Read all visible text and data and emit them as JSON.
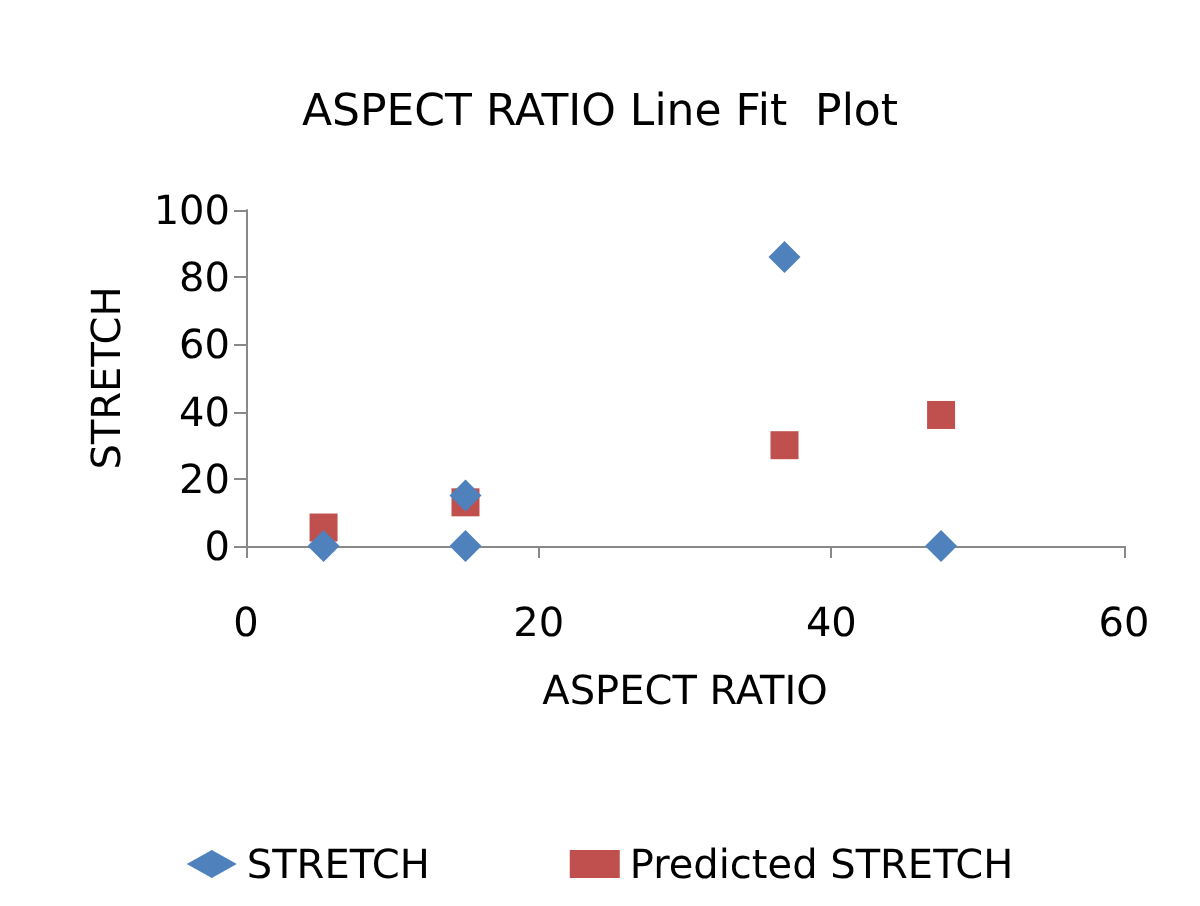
{
  "chart_data": {
    "type": "scatter",
    "title": "ASPECT RATIO Line Fit  Plot",
    "xlabel": "ASPECT RATIO",
    "ylabel": "STRETCH",
    "series": [
      {
        "name": "STRETCH",
        "color": "#4f81bd",
        "marker": "diamond",
        "x": [
          5.3,
          15,
          15,
          36.8,
          47.5
        ],
        "values": [
          0,
          0,
          15,
          86,
          0
        ]
      },
      {
        "name": "Predicted STRETCH",
        "color": "#c0504d",
        "marker": "square",
        "x": [
          5.3,
          15,
          36.8,
          47.5
        ],
        "values": [
          5.5,
          13,
          30,
          39
        ]
      }
    ],
    "xlim": [
      0,
      60
    ],
    "xticks": [
      0,
      20,
      40,
      60
    ],
    "ylim": [
      0,
      100
    ],
    "yticks": [
      0,
      20,
      40,
      60,
      80,
      100
    ],
    "grid": false,
    "legend": "bottom"
  }
}
